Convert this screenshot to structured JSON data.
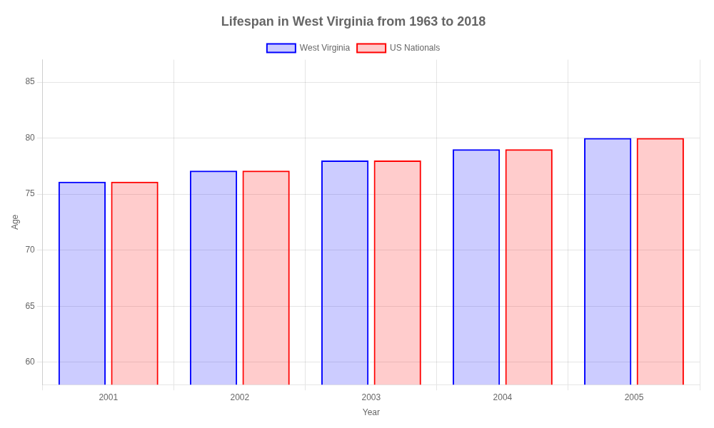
{
  "chart_data": {
    "type": "bar",
    "title": "Lifespan in West Virginia from 1963 to 2018",
    "xlabel": "Year",
    "ylabel": "Age",
    "categories": [
      "2001",
      "2002",
      "2003",
      "2004",
      "2005"
    ],
    "series": [
      {
        "name": "West Virginia",
        "color": "#0000ff",
        "values": [
          76.1,
          77.1,
          78.0,
          79.0,
          80.0
        ]
      },
      {
        "name": "US Nationals",
        "color": "#ff0000",
        "values": [
          76.1,
          77.1,
          78.0,
          79.0,
          80.0
        ]
      }
    ],
    "ylim": [
      58,
      87
    ],
    "yticks": [
      60,
      65,
      70,
      75,
      80,
      85
    ],
    "grid": true,
    "legend": "top"
  }
}
